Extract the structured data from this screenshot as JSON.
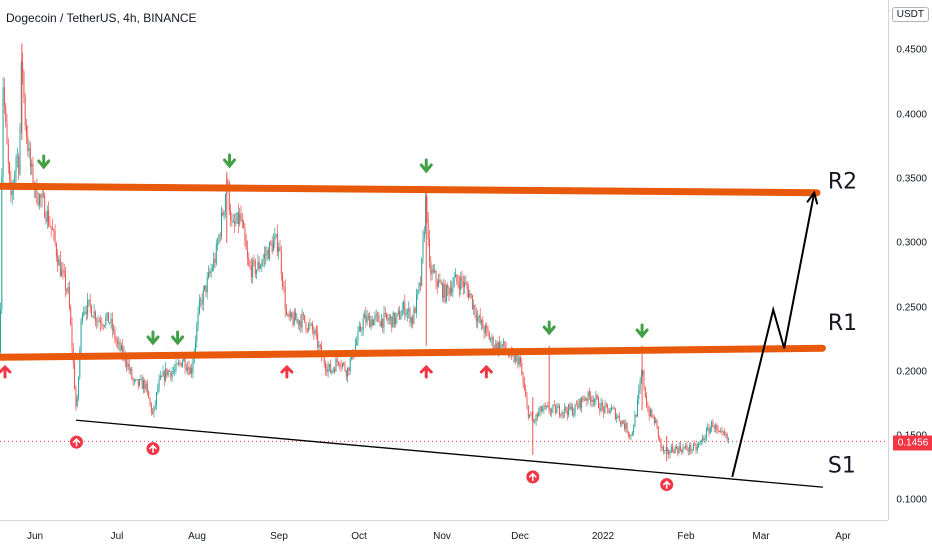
{
  "header": {
    "symbol_title": "Dogecoin / TetherUS, 4h, BINANCE"
  },
  "price_scale": {
    "currency": "USDT",
    "ticks": [
      "0.4500",
      "0.4000",
      "0.3500",
      "0.3000",
      "0.2500",
      "0.2000",
      "0.1500",
      "0.1000"
    ],
    "last_price_label": "0.1456"
  },
  "time_axis": {
    "ticks": [
      "Jun",
      "Jul",
      "Aug",
      "Sep",
      "Oct",
      "Nov",
      "Dec",
      "2022",
      "Feb",
      "Mar",
      "Apr"
    ]
  },
  "colors": {
    "up": "#26a69a",
    "down": "#ef5350",
    "level": "#e8590c",
    "buy_marker": "#f23645",
    "sell_marker": "#43a047",
    "projection": "#000000",
    "last_price": "#f23645"
  },
  "annotations": {
    "r2": "R2",
    "r1": "R1",
    "s1": "S1"
  },
  "chart_data": {
    "type": "candlestick",
    "title": "Dogecoin / TetherUS, 4h, BINANCE",
    "x_range": [
      "2021-05-25",
      "2022-04-15"
    ],
    "y_range": [
      0.075,
      0.475
    ],
    "price_path": [
      [
        "2021-05-25",
        0.215
      ],
      [
        "2021-05-26",
        0.43
      ],
      [
        "2021-05-27",
        0.39
      ],
      [
        "2021-05-29",
        0.33
      ],
      [
        "2021-05-31",
        0.37
      ],
      [
        "2021-06-01",
        0.36
      ],
      [
        "2021-06-02",
        0.45
      ],
      [
        "2021-06-03",
        0.4
      ],
      [
        "2021-06-05",
        0.36
      ],
      [
        "2021-06-07",
        0.34
      ],
      [
        "2021-06-10",
        0.33
      ],
      [
        "2021-06-13",
        0.31
      ],
      [
        "2021-06-16",
        0.28
      ],
      [
        "2021-06-19",
        0.26
      ],
      [
        "2021-06-21",
        0.2
      ],
      [
        "2021-06-22",
        0.165
      ],
      [
        "2021-06-24",
        0.25
      ],
      [
        "2021-06-27",
        0.25
      ],
      [
        "2021-06-30",
        0.24
      ],
      [
        "2021-07-04",
        0.24
      ],
      [
        "2021-07-07",
        0.22
      ],
      [
        "2021-07-10",
        0.21
      ],
      [
        "2021-07-13",
        0.19
      ],
      [
        "2021-07-17",
        0.19
      ],
      [
        "2021-07-20",
        0.165
      ],
      [
        "2021-07-22",
        0.19
      ],
      [
        "2021-07-25",
        0.2
      ],
      [
        "2021-07-28",
        0.2
      ],
      [
        "2021-07-31",
        0.21
      ],
      [
        "2021-08-03",
        0.2
      ],
      [
        "2021-08-06",
        0.25
      ],
      [
        "2021-08-09",
        0.27
      ],
      [
        "2021-08-12",
        0.29
      ],
      [
        "2021-08-15",
        0.33
      ],
      [
        "2021-08-16",
        0.35
      ],
      [
        "2021-08-18",
        0.31
      ],
      [
        "2021-08-21",
        0.32
      ],
      [
        "2021-08-24",
        0.28
      ],
      [
        "2021-08-27",
        0.28
      ],
      [
        "2021-08-30",
        0.29
      ],
      [
        "2021-09-02",
        0.3
      ],
      [
        "2021-09-04",
        0.3
      ],
      [
        "2021-09-07",
        0.24
      ],
      [
        "2021-09-10",
        0.24
      ],
      [
        "2021-09-13",
        0.24
      ],
      [
        "2021-09-17",
        0.23
      ],
      [
        "2021-09-20",
        0.21
      ],
      [
        "2021-09-23",
        0.2
      ],
      [
        "2021-09-26",
        0.21
      ],
      [
        "2021-09-29",
        0.2
      ],
      [
        "2021-10-02",
        0.22
      ],
      [
        "2021-10-05",
        0.24
      ],
      [
        "2021-10-08",
        0.24
      ],
      [
        "2021-10-11",
        0.24
      ],
      [
        "2021-10-14",
        0.24
      ],
      [
        "2021-10-17",
        0.24
      ],
      [
        "2021-10-20",
        0.25
      ],
      [
        "2021-10-23",
        0.24
      ],
      [
        "2021-10-26",
        0.27
      ],
      [
        "2021-10-28",
        0.34
      ],
      [
        "2021-10-29",
        0.28
      ],
      [
        "2021-11-01",
        0.27
      ],
      [
        "2021-11-04",
        0.26
      ],
      [
        "2021-11-07",
        0.27
      ],
      [
        "2021-11-10",
        0.27
      ],
      [
        "2021-11-13",
        0.26
      ],
      [
        "2021-11-16",
        0.24
      ],
      [
        "2021-11-19",
        0.23
      ],
      [
        "2021-11-22",
        0.22
      ],
      [
        "2021-11-25",
        0.22
      ],
      [
        "2021-11-28",
        0.21
      ],
      [
        "2021-12-01",
        0.21
      ],
      [
        "2021-12-04",
        0.17
      ],
      [
        "2021-12-06",
        0.16
      ],
      [
        "2021-12-09",
        0.17
      ],
      [
        "2021-12-12",
        0.17
      ],
      [
        "2021-12-14",
        0.17
      ],
      [
        "2021-12-18",
        0.17
      ],
      [
        "2021-12-21",
        0.17
      ],
      [
        "2021-12-25",
        0.18
      ],
      [
        "2021-12-28",
        0.18
      ],
      [
        "2022-01-01",
        0.17
      ],
      [
        "2022-01-04",
        0.17
      ],
      [
        "2022-01-08",
        0.16
      ],
      [
        "2022-01-11",
        0.15
      ],
      [
        "2022-01-13",
        0.17
      ],
      [
        "2022-01-15",
        0.2
      ],
      [
        "2022-01-17",
        0.17
      ],
      [
        "2022-01-20",
        0.16
      ],
      [
        "2022-01-22",
        0.14
      ],
      [
        "2022-01-24",
        0.135
      ],
      [
        "2022-01-26",
        0.14
      ],
      [
        "2022-01-29",
        0.14
      ],
      [
        "2022-02-01",
        0.14
      ],
      [
        "2022-02-04",
        0.14
      ],
      [
        "2022-02-07",
        0.15
      ],
      [
        "2022-02-10",
        0.16
      ],
      [
        "2022-02-12",
        0.15
      ],
      [
        "2022-02-14",
        0.15
      ],
      [
        "2022-02-16",
        0.145
      ]
    ],
    "levels": [
      {
        "label": "R2",
        "from": [
          "2021-05-25",
          0.344
        ],
        "to": [
          "2022-03-20",
          0.339
        ]
      },
      {
        "label": "R1",
        "from": [
          "2021-05-25",
          0.211
        ],
        "to": [
          "2022-03-22",
          0.218
        ]
      },
      {
        "label": "S1",
        "from": [
          "2021-06-22",
          0.162
        ],
        "to": [
          "2022-03-22",
          0.11
        ]
      }
    ],
    "projection": [
      [
        "2022-02-17",
        0.118
      ],
      [
        "2022-03-04",
        0.248
      ],
      [
        "2022-03-08",
        0.218
      ],
      [
        "2022-03-19",
        0.339
      ]
    ],
    "sell_markers": [
      "2021-06-10",
      "2021-07-20",
      "2021-07-29",
      "2021-08-17",
      "2021-10-28",
      "2021-12-12",
      "2022-01-15"
    ],
    "buy_markers_above_r1": [
      "2021-05-25",
      "2021-09-07",
      "2021-10-28",
      "2021-11-19"
    ],
    "buy_markers_low": [
      [
        "2021-06-22",
        0.145
      ],
      [
        "2021-07-20",
        0.14
      ],
      [
        "2021-12-06",
        0.118
      ],
      [
        "2022-01-24",
        0.112
      ]
    ],
    "last_price": 0.1456
  }
}
